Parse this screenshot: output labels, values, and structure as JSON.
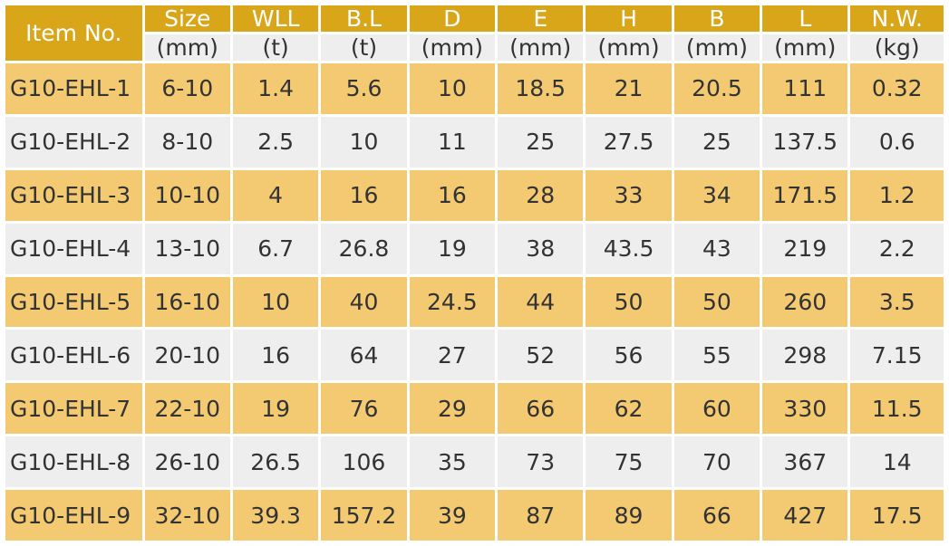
{
  "table": {
    "item_header": "Item No.",
    "columns": [
      {
        "name": "Size",
        "unit": "(mm)"
      },
      {
        "name": "WLL",
        "unit": "(t)"
      },
      {
        "name": "B.L",
        "unit": "(t)"
      },
      {
        "name": "D",
        "unit": "(mm)"
      },
      {
        "name": "E",
        "unit": "(mm)"
      },
      {
        "name": "H",
        "unit": "(mm)"
      },
      {
        "name": "B",
        "unit": "(mm)"
      },
      {
        "name": "L",
        "unit": "(mm)"
      },
      {
        "name": "N.W.",
        "unit": "(kg)"
      }
    ],
    "rows": [
      [
        "G10-EHL-1",
        "6-10",
        "1.4",
        "5.6",
        "10",
        "18.5",
        "21",
        "20.5",
        "111",
        "0.32"
      ],
      [
        "G10-EHL-2",
        "8-10",
        "2.5",
        "10",
        "11",
        "25",
        "27.5",
        "25",
        "137.5",
        "0.6"
      ],
      [
        "G10-EHL-3",
        "10-10",
        "4",
        "16",
        "16",
        "28",
        "33",
        "34",
        "171.5",
        "1.2"
      ],
      [
        "G10-EHL-4",
        "13-10",
        "6.7",
        "26.8",
        "19",
        "38",
        "43.5",
        "43",
        "219",
        "2.2"
      ],
      [
        "G10-EHL-5",
        "16-10",
        "10",
        "40",
        "24.5",
        "44",
        "50",
        "50",
        "260",
        "3.5"
      ],
      [
        "G10-EHL-6",
        "20-10",
        "16",
        "64",
        "27",
        "52",
        "56",
        "55",
        "298",
        "7.15"
      ],
      [
        "G10-EHL-7",
        "22-10",
        "19",
        "76",
        "29",
        "66",
        "62",
        "60",
        "330",
        "11.5"
      ],
      [
        "G10-EHL-8",
        "26-10",
        "26.5",
        "106",
        "35",
        "73",
        "75",
        "70",
        "367",
        "14"
      ],
      [
        "G10-EHL-9",
        "32-10",
        "39.3",
        "157.2",
        "39",
        "87",
        "89",
        "66",
        "427",
        "17.5"
      ]
    ]
  },
  "colors": {
    "header_bg": "#d9a619",
    "row_gold": "#f3c971",
    "row_grey": "#eeeeee"
  }
}
